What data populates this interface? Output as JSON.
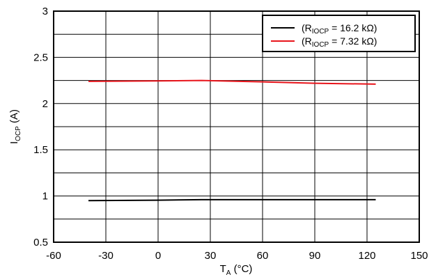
{
  "chart_data": {
    "type": "line",
    "xlabel": {
      "main": "T",
      "sub": "A",
      "rest": " (°C)"
    },
    "ylabel": {
      "main": "I",
      "sub": "OCP",
      "rest": " (A)"
    },
    "xlim": [
      -60,
      150
    ],
    "ylim": [
      0.5,
      3
    ],
    "xticks": [
      -60,
      -30,
      0,
      30,
      60,
      90,
      120,
      150
    ],
    "xtick_labels": [
      "-60",
      "-30",
      "0",
      "30",
      "60",
      "90",
      "120",
      "150"
    ],
    "yticks": [
      0.5,
      1,
      1.5,
      2,
      2.5,
      3
    ],
    "ytick_labels": [
      "0.5",
      "1",
      "1.5",
      "2",
      "2.5",
      "3"
    ],
    "grid": true,
    "minor_y_gridlines": [
      0.75,
      1.25,
      1.75,
      2.25,
      2.75
    ],
    "legend_position": "top-right",
    "series": [
      {
        "legend": {
          "pre": "(R",
          "sub": "IOCP",
          "post": " = 16.2 kΩ)"
        },
        "color": "#000000",
        "x": [
          -40,
          0,
          25,
          60,
          90,
          125
        ],
        "y": [
          0.95,
          0.955,
          0.96,
          0.96,
          0.96,
          0.96
        ]
      },
      {
        "legend": {
          "pre": "(R",
          "sub": "IOCP",
          "post": " = 7.32 kΩ)"
        },
        "color": "#e8141b",
        "x": [
          -40,
          0,
          25,
          60,
          90,
          125
        ],
        "y": [
          2.24,
          2.245,
          2.25,
          2.235,
          2.22,
          2.21
        ]
      }
    ]
  }
}
